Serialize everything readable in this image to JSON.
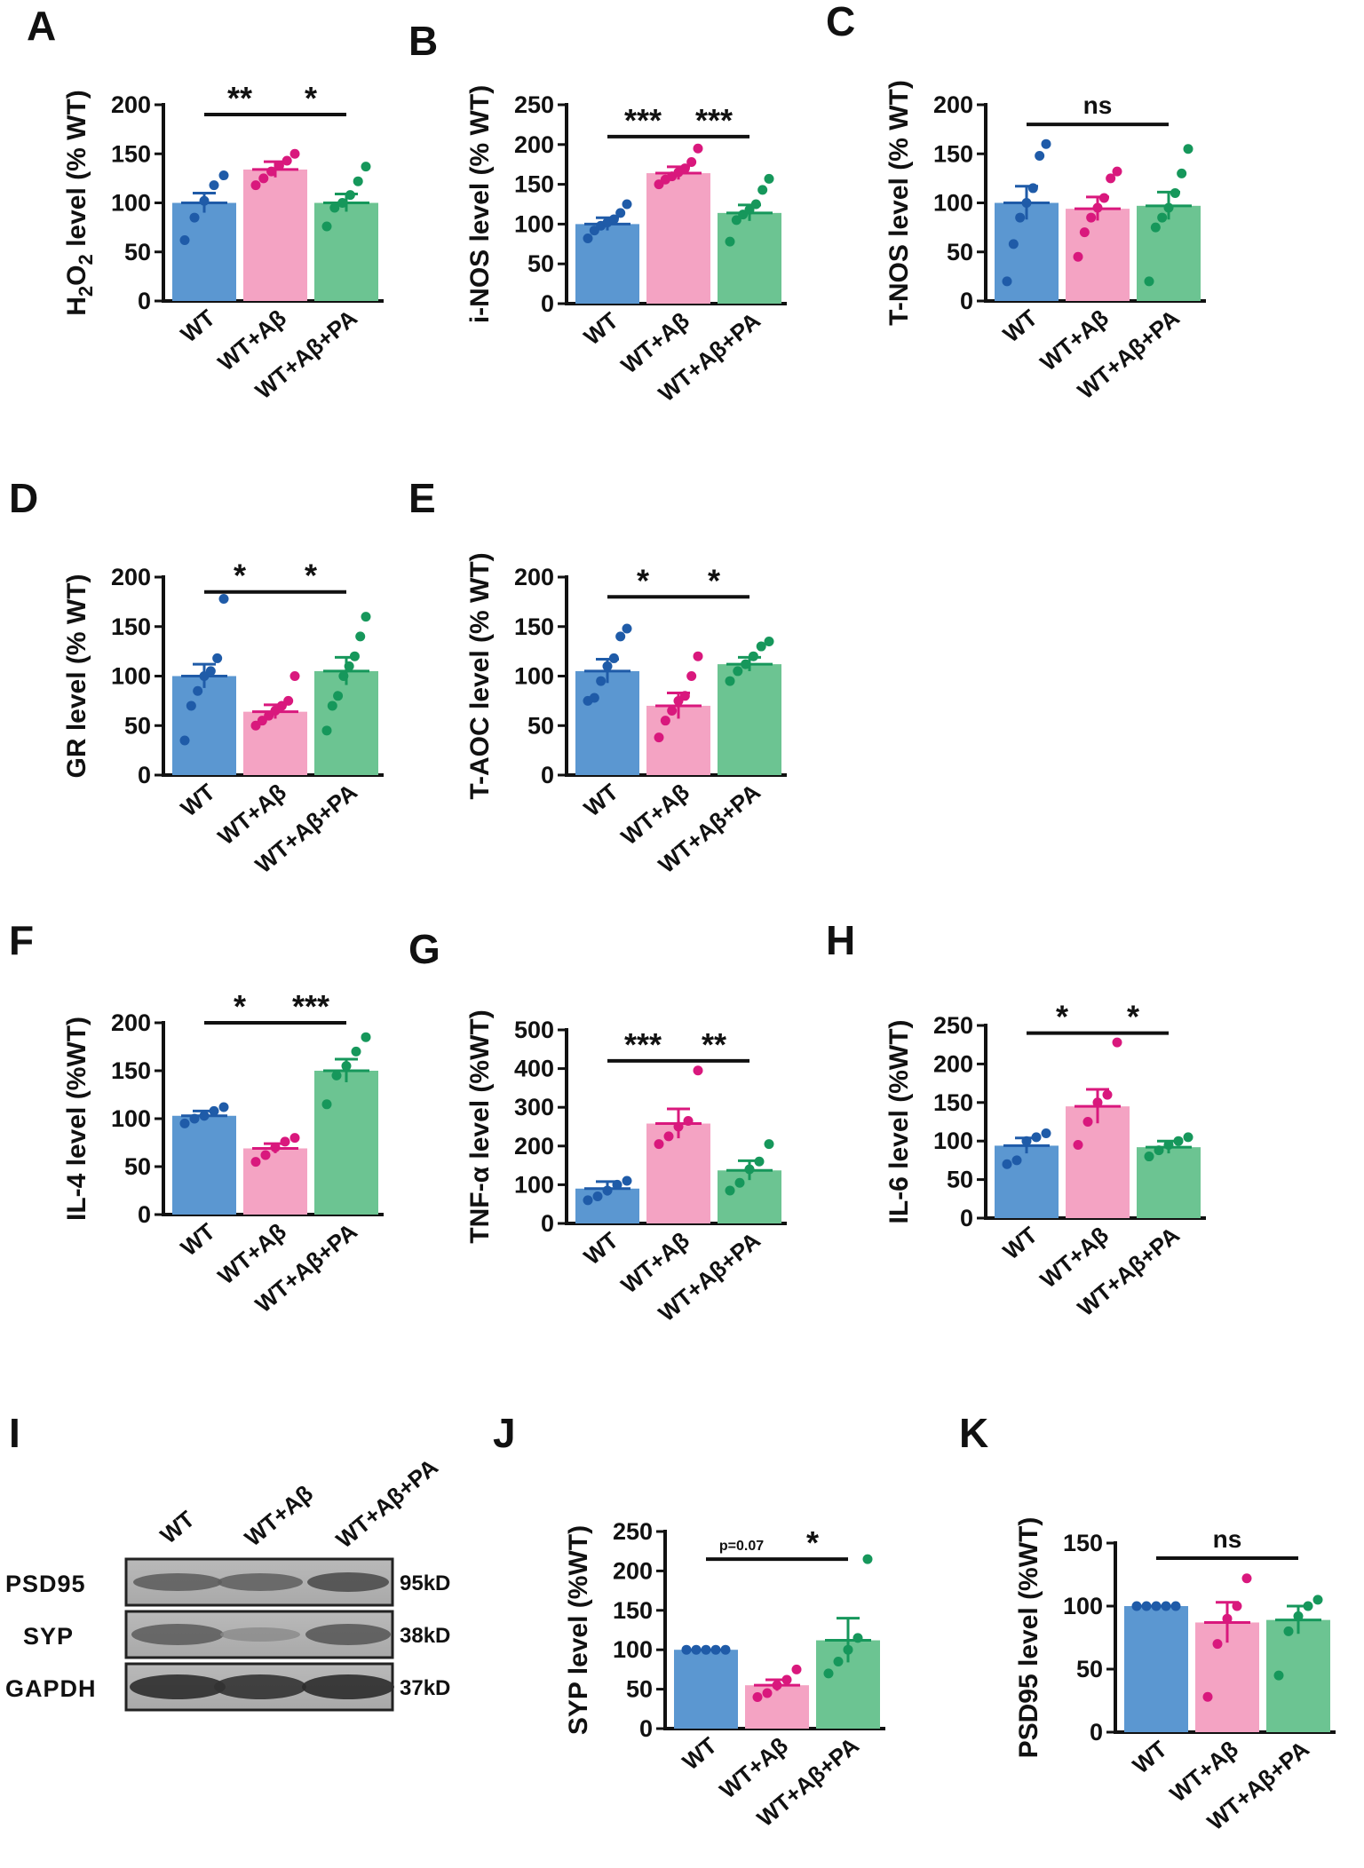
{
  "figure": {
    "panels_letters": [
      "A",
      "B",
      "C",
      "D",
      "E",
      "F",
      "G",
      "H",
      "I",
      "J",
      "K"
    ]
  },
  "colors": {
    "wt_fill": "#5b97d1",
    "wt_dot": "#1f5ba8",
    "ab_fill": "#f4a3c3",
    "ab_dot": "#d9187d",
    "pa_fill": "#6cc492",
    "pa_dot": "#16975b"
  },
  "chart_data": [
    {
      "id": "A",
      "type": "bar",
      "letter": "A",
      "ylabel": "H2O2 level (% WT)",
      "ylabel_parts": {
        "pre": "H",
        "sub": "2",
        "mid": "O",
        "sub2": "2",
        "post": " level (% WT)"
      },
      "categories": [
        "WT",
        "WT+Aβ",
        "WT+Aβ+PA"
      ],
      "values": [
        100,
        134,
        100
      ],
      "errors": [
        10,
        8,
        9
      ],
      "ylim": [
        0,
        200
      ],
      "yticks": [
        0,
        50,
        100,
        150,
        200
      ],
      "points": [
        [
          62,
          85,
          102,
          118,
          128
        ],
        [
          118,
          125,
          132,
          138,
          143,
          150
        ],
        [
          76,
          95,
          100,
          108,
          122,
          137
        ]
      ],
      "sig": [
        {
          "from": 0,
          "to": 1,
          "label": "**",
          "y": 190
        },
        {
          "from": 1,
          "to": 2,
          "label": "*",
          "y": 190
        }
      ]
    },
    {
      "id": "B",
      "type": "bar",
      "letter": "B",
      "ylabel": "i-NOS level (% WT)",
      "categories": [
        "WT",
        "WT+Aβ",
        "WT+Aβ+PA"
      ],
      "values": [
        100,
        164,
        114
      ],
      "errors": [
        8,
        8,
        10
      ],
      "ylim": [
        0,
        250
      ],
      "yticks": [
        0,
        50,
        100,
        150,
        200,
        250
      ],
      "points": [
        [
          82,
          92,
          98,
          102,
          106,
          114,
          125
        ],
        [
          150,
          156,
          160,
          165,
          170,
          178,
          195
        ],
        [
          78,
          105,
          112,
          118,
          125,
          143,
          157
        ]
      ],
      "sig": [
        {
          "from": 0,
          "to": 1,
          "label": "***",
          "y": 210
        },
        {
          "from": 1,
          "to": 2,
          "label": "***",
          "y": 210
        }
      ]
    },
    {
      "id": "C",
      "type": "bar",
      "letter": "C",
      "ylabel": "T-NOS level (% WT)",
      "categories": [
        "WT",
        "WT+Aβ",
        "WT+Aβ+PA"
      ],
      "values": [
        100,
        94,
        97
      ],
      "errors": [
        17,
        12,
        14
      ],
      "ylim": [
        0,
        200
      ],
      "yticks": [
        0,
        50,
        100,
        150,
        200
      ],
      "points": [
        [
          20,
          58,
          85,
          100,
          115,
          148,
          160
        ],
        [
          45,
          70,
          85,
          95,
          105,
          125,
          132
        ],
        [
          20,
          75,
          85,
          95,
          110,
          130,
          155
        ]
      ],
      "sig": [
        {
          "from": 0,
          "to": 2,
          "label": "ns",
          "y": 180
        }
      ]
    },
    {
      "id": "D",
      "type": "bar",
      "letter": "D",
      "ylabel": "GR level (% WT)",
      "categories": [
        "WT",
        "WT+Aβ",
        "WT+Aβ+PA"
      ],
      "values": [
        100,
        64,
        105
      ],
      "errors": [
        12,
        7,
        14
      ],
      "ylim": [
        0,
        200
      ],
      "yticks": [
        0,
        50,
        100,
        150,
        200
      ],
      "points": [
        [
          35,
          70,
          85,
          100,
          105,
          118,
          178
        ],
        [
          50,
          55,
          60,
          65,
          70,
          75,
          100
        ],
        [
          45,
          70,
          80,
          100,
          110,
          120,
          140,
          160
        ]
      ],
      "sig": [
        {
          "from": 0,
          "to": 1,
          "label": "*",
          "y": 185
        },
        {
          "from": 1,
          "to": 2,
          "label": "*",
          "y": 185
        }
      ]
    },
    {
      "id": "E",
      "type": "bar",
      "letter": "E",
      "ylabel": "T-AOC level (% WT)",
      "categories": [
        "WT",
        "WT+Aβ",
        "WT+Aβ+PA"
      ],
      "values": [
        105,
        70,
        112
      ],
      "errors": [
        12,
        13,
        7
      ],
      "ylim": [
        0,
        200
      ],
      "yticks": [
        0,
        50,
        100,
        150,
        200
      ],
      "points": [
        [
          75,
          78,
          95,
          110,
          118,
          140,
          148
        ],
        [
          38,
          55,
          65,
          75,
          80,
          100,
          120
        ],
        [
          95,
          105,
          112,
          120,
          130,
          135
        ]
      ],
      "sig": [
        {
          "from": 0,
          "to": 1,
          "label": "*",
          "y": 180
        },
        {
          "from": 1,
          "to": 2,
          "label": "*",
          "y": 180
        }
      ]
    },
    {
      "id": "F",
      "type": "bar",
      "letter": "F",
      "ylabel": "IL-4 level (%WT)",
      "categories": [
        "WT",
        "WT+Aβ",
        "WT+Aβ+PA"
      ],
      "values": [
        103,
        69,
        150
      ],
      "errors": [
        5,
        5,
        12
      ],
      "ylim": [
        0,
        200
      ],
      "yticks": [
        0,
        50,
        100,
        150,
        200
      ],
      "points": [
        [
          95,
          100,
          103,
          108,
          112
        ],
        [
          55,
          62,
          70,
          76,
          80
        ],
        [
          115,
          145,
          155,
          170,
          185
        ]
      ],
      "sig": [
        {
          "from": 0,
          "to": 1,
          "label": "*",
          "y": 200
        },
        {
          "from": 1,
          "to": 2,
          "label": "***",
          "y": 200
        }
      ]
    },
    {
      "id": "G",
      "type": "bar",
      "letter": "G",
      "ylabel": "TNF-α level  (%WT)",
      "categories": [
        "WT",
        "WT+Aβ",
        "WT+Aβ+PA"
      ],
      "values": [
        90,
        258,
        137
      ],
      "errors": [
        18,
        38,
        25
      ],
      "ylim": [
        0,
        500
      ],
      "yticks": [
        0,
        100,
        200,
        300,
        400,
        500
      ],
      "points": [
        [
          60,
          70,
          85,
          100,
          110
        ],
        [
          205,
          225,
          250,
          265,
          395
        ],
        [
          85,
          105,
          140,
          160,
          205
        ]
      ],
      "sig": [
        {
          "from": 0,
          "to": 1,
          "label": "***",
          "y": 420
        },
        {
          "from": 1,
          "to": 2,
          "label": "**",
          "y": 420
        }
      ]
    },
    {
      "id": "H",
      "type": "bar",
      "letter": "H",
      "ylabel": "IL-6 level (%WT)",
      "categories": [
        "WT",
        "WT+Aβ",
        "WT+Aβ+PA"
      ],
      "values": [
        94,
        145,
        92
      ],
      "errors": [
        10,
        22,
        8
      ],
      "ylim": [
        0,
        250
      ],
      "yticks": [
        0,
        50,
        100,
        150,
        200,
        250
      ],
      "points": [
        [
          70,
          75,
          100,
          105,
          110
        ],
        [
          95,
          125,
          150,
          160,
          228
        ],
        [
          80,
          88,
          95,
          100,
          105
        ]
      ],
      "sig": [
        {
          "from": 0,
          "to": 1,
          "label": "*",
          "y": 240
        },
        {
          "from": 1,
          "to": 2,
          "label": "*",
          "y": 240
        }
      ]
    },
    {
      "id": "J",
      "type": "bar",
      "letter": "J",
      "ylabel": "SYP level (%WT)",
      "categories": [
        "WT",
        "WT+Aβ",
        "WT+Aβ+PA"
      ],
      "values": [
        100,
        55,
        112
      ],
      "errors": [
        0,
        7,
        28
      ],
      "ylim": [
        0,
        250
      ],
      "yticks": [
        0,
        50,
        100,
        150,
        200,
        250
      ],
      "points": [
        [
          100,
          100,
          100,
          100,
          100
        ],
        [
          40,
          45,
          55,
          62,
          75
        ],
        [
          70,
          85,
          100,
          115,
          215
        ]
      ],
      "sig": [
        {
          "from": 0,
          "to": 1,
          "label": "p=0.07",
          "y": 215
        },
        {
          "from": 1,
          "to": 2,
          "label": "*",
          "y": 215
        }
      ]
    },
    {
      "id": "K",
      "type": "bar",
      "letter": "K",
      "ylabel": "PSD95 level (%WT)",
      "categories": [
        "WT",
        "WT+Aβ",
        "WT+Aβ+PA"
      ],
      "values": [
        100,
        87,
        89
      ],
      "errors": [
        0,
        16,
        11
      ],
      "ylim": [
        0,
        150
      ],
      "yticks": [
        0,
        50,
        100,
        150
      ],
      "points": [
        [
          100,
          100,
          100,
          100,
          100
        ],
        [
          28,
          70,
          90,
          100,
          122
        ],
        [
          45,
          80,
          92,
          100,
          105
        ]
      ],
      "sig": [
        {
          "from": 0,
          "to": 2,
          "label": "ns",
          "y": 138
        }
      ]
    }
  ],
  "blot": {
    "letter": "I",
    "lanes": [
      "WT",
      "WT+Aβ",
      "WT+Aβ+PA"
    ],
    "rows": [
      {
        "protein": "PSD95",
        "size": "95kD"
      },
      {
        "protein": "SYP",
        "size": "38kD"
      },
      {
        "protein": "GAPDH",
        "size": "37kD"
      }
    ]
  }
}
